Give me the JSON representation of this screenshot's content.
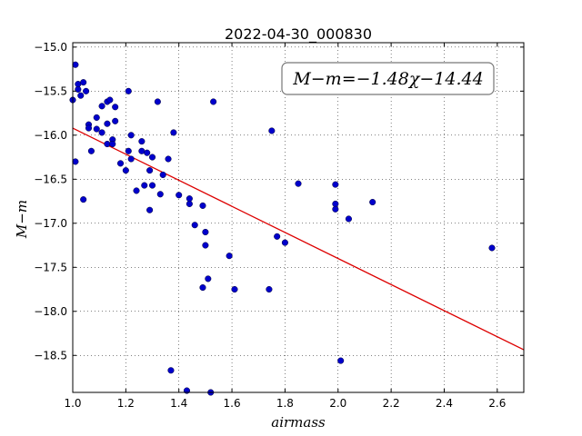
{
  "chart_data": {
    "type": "scatter",
    "title": "2022-04-30_000830",
    "xlabel": "airmass",
    "ylabel": "M−m",
    "xlim": [
      1.0,
      2.7
    ],
    "ylim": [
      -18.92,
      -14.95
    ],
    "y_inverted": true,
    "x_ticks": [
      1.0,
      1.2,
      1.4,
      1.6,
      1.8,
      2.0,
      2.2,
      2.4,
      2.6
    ],
    "x_tick_labels": [
      "1.0",
      "1.2",
      "1.4",
      "1.6",
      "1.8",
      "2.0",
      "2.2",
      "2.4",
      "2.6"
    ],
    "y_ticks": [
      -15.0,
      -15.5,
      -16.0,
      -16.5,
      -17.0,
      -17.5,
      -18.0,
      -18.5
    ],
    "y_tick_labels": [
      "−15.0",
      "−15.5",
      "−16.0",
      "−16.5",
      "−17.0",
      "−17.5",
      "−18.0",
      "−18.5"
    ],
    "grid": true,
    "annotation": "M−m=−1.48χ−14.44",
    "fit": {
      "slope": -1.48,
      "intercept": -14.44,
      "color": "#dd0000"
    },
    "point_color": "#0000cc",
    "points": [
      {
        "x": 1.0,
        "y": -15.6
      },
      {
        "x": 1.01,
        "y": -15.2
      },
      {
        "x": 1.01,
        "y": -16.3
      },
      {
        "x": 1.02,
        "y": -15.42
      },
      {
        "x": 1.02,
        "y": -15.48
      },
      {
        "x": 1.03,
        "y": -15.55
      },
      {
        "x": 1.04,
        "y": -15.4
      },
      {
        "x": 1.04,
        "y": -16.73
      },
      {
        "x": 1.05,
        "y": -15.5
      },
      {
        "x": 1.06,
        "y": -15.88
      },
      {
        "x": 1.06,
        "y": -15.92
      },
      {
        "x": 1.07,
        "y": -16.18
      },
      {
        "x": 1.09,
        "y": -15.8
      },
      {
        "x": 1.09,
        "y": -15.93
      },
      {
        "x": 1.11,
        "y": -15.97
      },
      {
        "x": 1.11,
        "y": -15.67
      },
      {
        "x": 1.13,
        "y": -15.62
      },
      {
        "x": 1.13,
        "y": -15.87
      },
      {
        "x": 1.13,
        "y": -16.1
      },
      {
        "x": 1.14,
        "y": -15.6
      },
      {
        "x": 1.15,
        "y": -16.05
      },
      {
        "x": 1.15,
        "y": -16.1
      },
      {
        "x": 1.16,
        "y": -15.68
      },
      {
        "x": 1.16,
        "y": -15.84
      },
      {
        "x": 1.18,
        "y": -16.32
      },
      {
        "x": 1.2,
        "y": -16.4
      },
      {
        "x": 1.21,
        "y": -15.5
      },
      {
        "x": 1.21,
        "y": -16.18
      },
      {
        "x": 1.22,
        "y": -16.27
      },
      {
        "x": 1.22,
        "y": -16.0
      },
      {
        "x": 1.24,
        "y": -16.63
      },
      {
        "x": 1.26,
        "y": -16.07
      },
      {
        "x": 1.26,
        "y": -16.18
      },
      {
        "x": 1.27,
        "y": -16.57
      },
      {
        "x": 1.28,
        "y": -16.2
      },
      {
        "x": 1.29,
        "y": -16.4
      },
      {
        "x": 1.29,
        "y": -16.85
      },
      {
        "x": 1.3,
        "y": -16.57
      },
      {
        "x": 1.3,
        "y": -16.25
      },
      {
        "x": 1.32,
        "y": -15.62
      },
      {
        "x": 1.33,
        "y": -16.67
      },
      {
        "x": 1.34,
        "y": -16.45
      },
      {
        "x": 1.36,
        "y": -16.27
      },
      {
        "x": 1.37,
        "y": -18.67
      },
      {
        "x": 1.38,
        "y": -15.97
      },
      {
        "x": 1.4,
        "y": -16.68
      },
      {
        "x": 1.43,
        "y": -18.9
      },
      {
        "x": 1.44,
        "y": -16.72
      },
      {
        "x": 1.44,
        "y": -16.78
      },
      {
        "x": 1.46,
        "y": -17.02
      },
      {
        "x": 1.49,
        "y": -17.73
      },
      {
        "x": 1.49,
        "y": -16.8
      },
      {
        "x": 1.5,
        "y": -17.25
      },
      {
        "x": 1.5,
        "y": -17.1
      },
      {
        "x": 1.51,
        "y": -17.63
      },
      {
        "x": 1.52,
        "y": -18.92
      },
      {
        "x": 1.53,
        "y": -15.62
      },
      {
        "x": 1.59,
        "y": -17.37
      },
      {
        "x": 1.61,
        "y": -17.75
      },
      {
        "x": 1.74,
        "y": -17.75
      },
      {
        "x": 1.75,
        "y": -15.95
      },
      {
        "x": 1.77,
        "y": -17.15
      },
      {
        "x": 1.8,
        "y": -17.22
      },
      {
        "x": 1.85,
        "y": -16.55
      },
      {
        "x": 1.99,
        "y": -16.56
      },
      {
        "x": 1.99,
        "y": -16.78
      },
      {
        "x": 1.99,
        "y": -16.84
      },
      {
        "x": 2.01,
        "y": -18.56
      },
      {
        "x": 2.04,
        "y": -16.95
      },
      {
        "x": 2.13,
        "y": -16.76
      },
      {
        "x": 2.58,
        "y": -17.28
      }
    ]
  }
}
